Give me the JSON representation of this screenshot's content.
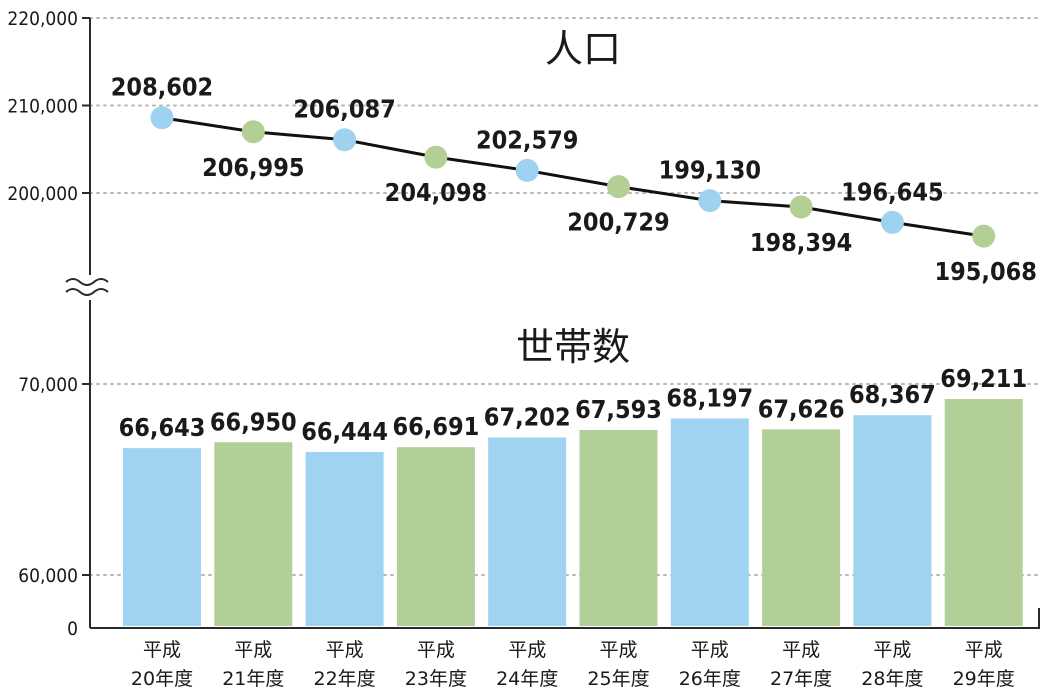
{
  "chart_data": [
    {
      "type": "line",
      "title": "人口",
      "categories": [
        "平成20年度",
        "平成21年度",
        "平成22年度",
        "平成23年度",
        "平成24年度",
        "平成25年度",
        "平成26年度",
        "平成27年度",
        "平成28年度",
        "平成29年度"
      ],
      "values": [
        208602,
        206995,
        206087,
        204098,
        202579,
        200729,
        199130,
        198394,
        196645,
        195068
      ],
      "value_labels": [
        "208,602",
        "206,995",
        "206,087",
        "204,098",
        "202,579",
        "200,729",
        "199,130",
        "198,394",
        "196,645",
        "195,068"
      ],
      "yticks": [
        200000,
        210000,
        220000
      ],
      "ytick_labels": [
        "200,000",
        "210,000",
        "220,000"
      ],
      "ylim": [
        190000,
        220000
      ],
      "axis_break": true,
      "grid": true,
      "marker_colors": [
        "#9fd1f0",
        "#b2cf95"
      ]
    },
    {
      "type": "bar",
      "title": "世帯数",
      "categories": [
        "平成20年度",
        "平成21年度",
        "平成22年度",
        "平成23年度",
        "平成24年度",
        "平成25年度",
        "平成26年度",
        "平成27年度",
        "平成28年度",
        "平成29年度"
      ],
      "values": [
        66643,
        66950,
        66444,
        66691,
        67202,
        67593,
        68197,
        67626,
        68367,
        69211
      ],
      "value_labels": [
        "66,643",
        "66,950",
        "66,444",
        "66,691",
        "67,202",
        "67,593",
        "68,197",
        "67,626",
        "68,367",
        "69,211"
      ],
      "yticks": [
        0,
        60000,
        70000
      ],
      "ytick_labels": [
        "0",
        "60,000",
        "70,000"
      ],
      "ylim": [
        60000,
        70000
      ],
      "grid": true,
      "bar_colors": [
        "#a0d2f1",
        "#b1cf96"
      ]
    }
  ],
  "x_labels": [
    {
      "line1": "平成",
      "line2": "20年度"
    },
    {
      "line1": "平成",
      "line2": "21年度"
    },
    {
      "line1": "平成",
      "line2": "22年度"
    },
    {
      "line1": "平成",
      "line2": "23年度"
    },
    {
      "line1": "平成",
      "line2": "24年度"
    },
    {
      "line1": "平成",
      "line2": "25年度"
    },
    {
      "line1": "平成",
      "line2": "26年度"
    },
    {
      "line1": "平成",
      "line2": "27年度"
    },
    {
      "line1": "平成",
      "line2": "28年度"
    },
    {
      "line1": "平成",
      "line2": "29年度"
    }
  ],
  "colors": {
    "axis": "#2a2a2a",
    "grid": "#b8b8b8",
    "line": "#111111",
    "blue": "#a0d2f1",
    "green": "#b1cf96"
  }
}
